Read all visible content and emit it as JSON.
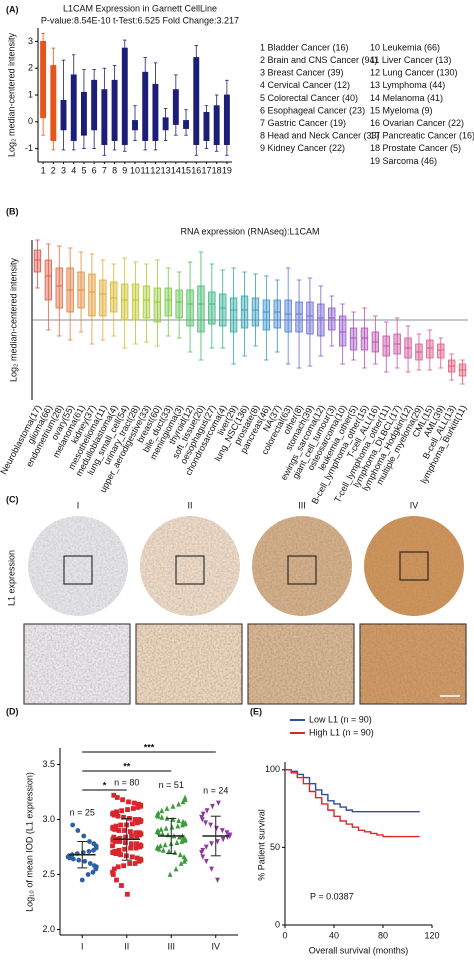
{
  "chart_data": [
    {
      "type": "box",
      "panel_label": "(A)",
      "title": "L1CAM Expression in Garnett CellLine",
      "subtitle": "P-value:8.54E-10 t-Test:6.525 Fold Change:3.217",
      "ylabel": "Log₂ median-centered intensity",
      "categories": [
        "1",
        "2",
        "3",
        "4",
        "5",
        "6",
        "7",
        "8",
        "9",
        "10",
        "11",
        "12",
        "13",
        "14",
        "15",
        "16",
        "17",
        "18",
        "19"
      ],
      "low": [
        -0.5,
        -1.05,
        -1.05,
        -1.05,
        -1.0,
        -1.0,
        -1.25,
        -1.05,
        -1.1,
        -0.7,
        -1.05,
        -1.05,
        -0.7,
        -0.5,
        -0.5,
        -1.25,
        -1.0,
        -1.1,
        -1.25
      ],
      "q1": [
        0.15,
        -0.7,
        -0.3,
        -0.7,
        -0.5,
        -0.3,
        -0.85,
        -0.7,
        -0.85,
        -0.3,
        -0.7,
        -0.7,
        -0.3,
        -0.1,
        -0.25,
        -0.85,
        -0.7,
        -0.85,
        -0.85
      ],
      "q3": [
        3.0,
        2.1,
        0.8,
        1.75,
        1.1,
        1.55,
        1.2,
        1.55,
        2.75,
        0.05,
        1.85,
        1.4,
        0.15,
        1.2,
        0.05,
        2.4,
        0.35,
        0.6,
        1.0
      ],
      "high": [
        3.3,
        2.75,
        2.3,
        2.5,
        1.95,
        1.95,
        2.0,
        2.1,
        3.05,
        0.6,
        2.4,
        2.2,
        0.5,
        1.75,
        0.45,
        2.85,
        0.6,
        1.0,
        1.55
      ],
      "colors": [
        "#e8541a",
        "#e8541a",
        "#1b1f78",
        "#1b1f78",
        "#1b1f78",
        "#1b1f78",
        "#1b1f78",
        "#1b1f78",
        "#1b1f78",
        "#1b1f78",
        "#1b1f78",
        "#1b1f78",
        "#1b1f78",
        "#1b1f78",
        "#1b1f78",
        "#1b1f78",
        "#1b1f78",
        "#1b1f78",
        "#1b1f78"
      ],
      "ylim": [
        -1.5,
        3.5
      ],
      "yticks": [
        3,
        2,
        1,
        0,
        -1
      ],
      "legend": [
        "1 Bladder Cancer (16)",
        "2 Brain and CNS Cancer (94)",
        "3 Breast Cancer (39)",
        "4 Cervical Cancer (12)",
        "5 Colorectal Cancer (40)",
        "6 Esophageal Cancer (23)",
        "7 Gastric Cancer (19)",
        "8 Head and Neck Cancer (33)",
        "9 Kidney Cancer (22)",
        "10 Leukemia (66)",
        "11 Liver Cancer (13)",
        "12 Lung Cancer (130)",
        "13 Lymphoma (44)",
        "14 Melanoma (41)",
        "15 Myeloma (9)",
        "16 Ovarian Cancer (22)",
        "17 Pancreatic Cancer (16)",
        "18 Prostate Cancer (5)",
        "19 Sarcoma (46)"
      ]
    },
    {
      "type": "box",
      "panel_label": "(B)",
      "title": "RNA expression (RNAseq):L1CAM",
      "ylabel": "Log₂ median-centered intensity",
      "categories": [
        "Neuroblastoma(17)",
        "glioma(66)",
        "endometrium(28)",
        "ovary(55)",
        "melanoma(61)",
        "kidney(37)",
        "mesothelioma(11)",
        "medulloblastoma(4)",
        "lung_small_cell(54)",
        "urinary_tract(28)",
        "upper_aerodigestive(33)",
        "breast(60)",
        "bile_duct(33)",
        "meningioma(3)",
        "thyroid(12)",
        "soft_tissue(20)",
        "oesophagus(27)",
        "chondrosarcoma(4)",
        "liver(29)",
        "lung_NSC(136)",
        "prostate(8)",
        "pancreas(46)",
        "NA(37)",
        "colorectal(63)",
        "other(8)",
        "stomach(39)",
        "ewings_sarcoma(12)",
        "giant_cell_tumour(3)",
        "osteosarcoma(10)",
        "leukemia_other(5)",
        "B-cell_lymphoma_other(15)",
        "T-cell_ALL(16)",
        "T-cell_lymphoma_other(11)",
        "lymphoma_DLBCL(17)",
        "lymphoma_Hodgkin(12)",
        "multiple_myeloma(29)",
        "CML(15)",
        "AML(39)",
        "B-cell_ALL(13)",
        "lymphoma_Burkitt(11)"
      ],
      "low": [
        1.6,
        -0.5,
        -0.8,
        -1.0,
        -0.6,
        -1.2,
        -1.0,
        -0.8,
        -1.4,
        -1.2,
        -1.1,
        -1.3,
        -0.8,
        -0.9,
        -1.6,
        -2.0,
        -1.4,
        -1.4,
        -2.2,
        -1.8,
        -1.3,
        -2.0,
        -1.6,
        -2.2,
        -2.4,
        -2.3,
        -1.8,
        -1.3,
        -2.2,
        -2.0,
        -2.4,
        -2.2,
        -2.6,
        -2.4,
        -2.6,
        -2.5,
        -2.5,
        -2.4,
        -3.0,
        -3.2
      ],
      "q1": [
        2.4,
        1.0,
        0.6,
        0.4,
        0.6,
        0.2,
        0.2,
        0.4,
        0.0,
        0.0,
        0.1,
        -0.1,
        0.2,
        0.1,
        -0.3,
        -0.6,
        -0.2,
        -0.3,
        -0.6,
        -0.4,
        -0.3,
        -0.5,
        -0.4,
        -0.6,
        -0.6,
        -0.7,
        -0.8,
        -0.5,
        -1.3,
        -1.5,
        -1.5,
        -1.6,
        -1.8,
        -1.7,
        -1.9,
        -2.0,
        -1.9,
        -1.9,
        -2.6,
        -2.8
      ],
      "median": [
        3.0,
        2.2,
        1.7,
        1.5,
        1.5,
        1.4,
        1.3,
        1.1,
        1.0,
        1.0,
        1.0,
        0.9,
        1.0,
        0.9,
        0.8,
        0.8,
        0.8,
        0.6,
        0.5,
        0.5,
        0.5,
        0.4,
        0.4,
        0.3,
        0.3,
        0.2,
        0.1,
        0.1,
        -0.6,
        -0.9,
        -0.9,
        -1.1,
        -1.3,
        -1.2,
        -1.4,
        -1.6,
        -1.4,
        -1.5,
        -2.3,
        -2.5
      ],
      "q3": [
        3.5,
        3.0,
        2.6,
        2.6,
        2.4,
        2.3,
        2.0,
        1.9,
        1.8,
        1.8,
        1.7,
        1.6,
        1.6,
        1.5,
        1.5,
        1.7,
        1.4,
        1.3,
        1.1,
        1.2,
        1.1,
        1.0,
        1.0,
        1.0,
        0.9,
        0.9,
        0.8,
        0.6,
        0.2,
        -0.4,
        -0.4,
        -0.6,
        -0.8,
        -0.7,
        -0.9,
        -1.2,
        -1.0,
        -1.2,
        -2.0,
        -2.2
      ],
      "high": [
        4.0,
        3.8,
        3.7,
        3.6,
        3.4,
        3.3,
        3.0,
        2.8,
        3.1,
        2.9,
        2.8,
        3.0,
        2.6,
        2.4,
        2.9,
        3.4,
        2.8,
        2.5,
        2.6,
        2.4,
        2.3,
        2.2,
        2.0,
        2.6,
        2.0,
        2.1,
        1.7,
        1.2,
        0.8,
        0.4,
        0.6,
        0.2,
        -0.1,
        0.1,
        -0.3,
        -0.7,
        -0.5,
        -0.9,
        -1.7,
        -2.0
      ],
      "colors": [
        "#d9534f",
        "#d9604a",
        "#dd6b45",
        "#e07a3d",
        "#e2893a",
        "#e39a34",
        "#e0a930",
        "#d8b52c",
        "#cdbf2b",
        "#bcc62d",
        "#a8c932",
        "#92c93b",
        "#7bc745",
        "#63c34f",
        "#4fbf5c",
        "#41ba6c",
        "#39b57e",
        "#35b090",
        "#33aaa2",
        "#33a3b2",
        "#369bc0",
        "#3b92ca",
        "#4488d0",
        "#4f7ed4",
        "#5b74d6",
        "#6a6bd6",
        "#7a63d3",
        "#8a5dce",
        "#985ac7",
        "#a558c0",
        "#b056b8",
        "#ba55b0",
        "#c455a8",
        "#cc55a0",
        "#d35598",
        "#d85690",
        "#dc5888",
        "#df5a80",
        "#e15c78",
        "#e25e70"
      ],
      "ylim": [
        -4,
        4
      ],
      "reference_line": 0
    },
    {
      "type": "dot",
      "panel_label": "(D)",
      "ylabel": "Log₁₀ of  mean IOD (L1 expression)",
      "categories": [
        "I",
        "II",
        "III",
        "IV"
      ],
      "n_labels": [
        "n = 25",
        "n = 80",
        "n = 51",
        "n = 24"
      ],
      "groups": [
        {
          "color": "#2d5fa6",
          "marker": "circle",
          "values": [
            2.45,
            2.5,
            2.52,
            2.55,
            2.57,
            2.58,
            2.6,
            2.62,
            2.63,
            2.64,
            2.65,
            2.66,
            2.67,
            2.68,
            2.69,
            2.7,
            2.71,
            2.72,
            2.74,
            2.76,
            2.78,
            2.8,
            2.85,
            2.9,
            2.95
          ]
        },
        {
          "color": "#d8262c",
          "marker": "square",
          "values": [
            2.32,
            2.4,
            2.45,
            2.5,
            2.52,
            2.55,
            2.57,
            2.58,
            2.6,
            2.6,
            2.62,
            2.63,
            2.64,
            2.65,
            2.66,
            2.67,
            2.68,
            2.69,
            2.7,
            2.7,
            2.71,
            2.72,
            2.73,
            2.74,
            2.74,
            2.75,
            2.76,
            2.77,
            2.78,
            2.78,
            2.79,
            2.8,
            2.8,
            2.81,
            2.82,
            2.82,
            2.83,
            2.84,
            2.85,
            2.85,
            2.86,
            2.87,
            2.88,
            2.88,
            2.89,
            2.9,
            2.9,
            2.91,
            2.92,
            2.93,
            2.94,
            2.95,
            2.95,
            2.96,
            2.97,
            2.98,
            2.99,
            3.0,
            3.0,
            3.01,
            3.02,
            3.03,
            3.04,
            3.05,
            3.06,
            3.07,
            3.08,
            3.09,
            3.1,
            3.11,
            3.12,
            3.13,
            3.14,
            3.15,
            3.16,
            3.18,
            3.2,
            3.22,
            2.76,
            2.84
          ]
        },
        {
          "color": "#3a9a3c",
          "marker": "triangle",
          "values": [
            2.5,
            2.55,
            2.6,
            2.62,
            2.64,
            2.66,
            2.68,
            2.7,
            2.71,
            2.72,
            2.73,
            2.74,
            2.75,
            2.76,
            2.77,
            2.78,
            2.79,
            2.8,
            2.81,
            2.82,
            2.83,
            2.84,
            2.85,
            2.86,
            2.87,
            2.88,
            2.89,
            2.9,
            2.91,
            2.92,
            2.93,
            2.94,
            2.95,
            2.96,
            2.97,
            2.98,
            2.99,
            3.0,
            3.01,
            3.02,
            3.03,
            3.04,
            3.06,
            3.08,
            3.1,
            3.12,
            3.14,
            3.16,
            3.18,
            3.2,
            2.85
          ]
        },
        {
          "color": "#8b3b9c",
          "marker": "triangle-down",
          "values": [
            2.45,
            2.55,
            2.62,
            2.66,
            2.7,
            2.72,
            2.75,
            2.78,
            2.8,
            2.82,
            2.84,
            2.85,
            2.86,
            2.88,
            2.9,
            2.92,
            2.95,
            2.97,
            3.0,
            3.02,
            3.05,
            3.08,
            3.12,
            3.15
          ]
        }
      ],
      "means": [
        2.68,
        2.82,
        2.85,
        2.85
      ],
      "sd": [
        0.12,
        0.19,
        0.16,
        0.18
      ],
      "significance": [
        "*",
        "**",
        "***"
      ],
      "ylim": [
        1.95,
        3.65
      ],
      "yticks": [
        {
          "value": 2,
          "label": "2.0"
        },
        2.5,
        {
          "value": 3,
          "label": "3.0"
        },
        3.5
      ]
    },
    {
      "type": "survival",
      "panel_label": "(E)",
      "ylabel": "% Patient survival",
      "xlabel": "Overall survival (months)",
      "annotation": "P = 0.0387",
      "series": [
        {
          "name": "Low L1 (n = 90)",
          "color": "#2b4ea0",
          "x": [
            0,
            5,
            10,
            15,
            20,
            25,
            30,
            35,
            40,
            45,
            50,
            55,
            110
          ],
          "values": [
            100,
            99,
            97,
            95,
            91,
            87,
            84,
            80,
            78,
            76,
            74,
            73,
            73
          ]
        },
        {
          "name": "High L1 (n = 90)",
          "color": "#d62a2a",
          "x": [
            0,
            5,
            10,
            15,
            20,
            25,
            30,
            35,
            40,
            45,
            50,
            55,
            60,
            65,
            70,
            75,
            80,
            85,
            110
          ],
          "values": [
            100,
            98,
            95,
            91,
            86,
            82,
            78,
            74,
            70,
            67,
            65,
            63,
            61,
            60,
            59,
            58,
            57,
            57,
            57
          ]
        }
      ],
      "xlim": [
        0,
        120
      ],
      "xticks": [
        0,
        40,
        80,
        120
      ],
      "ylim": [
        0,
        105
      ],
      "yticks": [
        0,
        50,
        100
      ]
    }
  ],
  "image_panel": {
    "panel_label": "(C)",
    "columns": [
      "I",
      "II",
      "III",
      "IV"
    ],
    "ylabel": "L1 expression"
  }
}
